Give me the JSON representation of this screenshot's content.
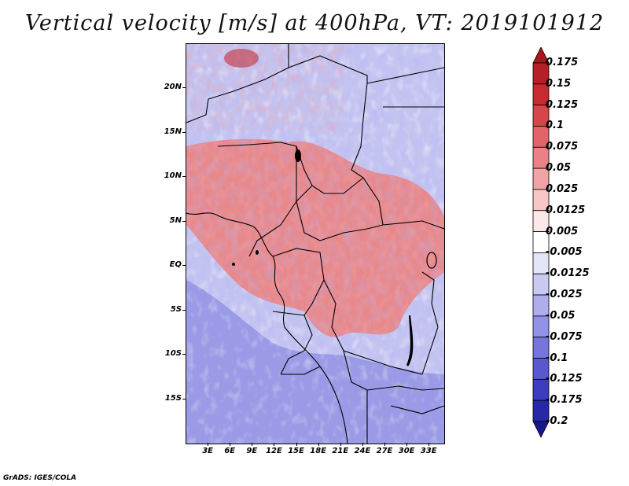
{
  "title": "Vertical velocity [m/s] at 400hPa, VT: 2019101912",
  "credit": "GrADS: IGES/COLA",
  "map": {
    "lat_labels": [
      "20N",
      "15N",
      "10N",
      "5N",
      "EQ",
      "5S",
      "10S",
      "15S"
    ],
    "lat_values": [
      20,
      15,
      10,
      5,
      0,
      -5,
      -10,
      -15
    ],
    "lon_labels": [
      "3E",
      "6E",
      "9E",
      "12E",
      "15E",
      "18E",
      "21E",
      "24E",
      "27E",
      "30E",
      "33E"
    ],
    "lon_values": [
      3,
      6,
      9,
      12,
      15,
      18,
      21,
      24,
      27,
      30,
      33
    ],
    "lat_range": [
      -20,
      25
    ],
    "lon_range": [
      0,
      35
    ]
  },
  "colorbar": {
    "labels": [
      "0.175",
      "0.15",
      "0.125",
      "0.1",
      "0.075",
      "0.05",
      "0.025",
      "0.0125",
      "0.005",
      "-0.005",
      "-0.0125",
      "-0.025",
      "-0.05",
      "-0.075",
      "-0.1",
      "-0.125",
      "-0.175",
      "-0.2"
    ],
    "colors": [
      "#a8161c",
      "#b52026",
      "#c72b30",
      "#d6454a",
      "#e06468",
      "#e88285",
      "#f0a4a6",
      "#f7c6c7",
      "#fce8e8",
      "#ffffff",
      "#e4e4f8",
      "#c9c9f2",
      "#aeaeee",
      "#9292e6",
      "#7575dc",
      "#5858cf",
      "#3c3cbf",
      "#2727a8",
      "#17178c"
    ]
  }
}
